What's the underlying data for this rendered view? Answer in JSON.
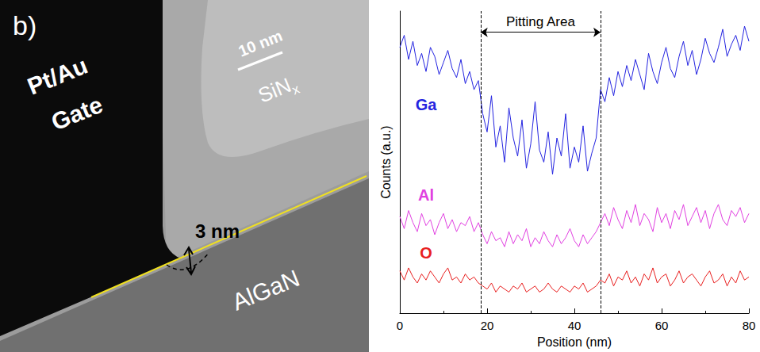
{
  "micrograph": {
    "panel_label": "b)",
    "gate_label": "Pt/Au Gate",
    "dielectric_label": "SiNx",
    "barrier_label": "AlGaN",
    "scale_bar": "10 nm",
    "measurement": "3 nm"
  },
  "chart_data": {
    "type": "line",
    "xlabel": "Position (nm)",
    "ylabel": "Counts (a.u.)",
    "x": [
      0,
      1,
      2,
      3,
      4,
      5,
      6,
      7,
      8,
      9,
      10,
      11,
      12,
      13,
      14,
      15,
      16,
      17,
      18,
      19,
      20,
      21,
      22,
      23,
      24,
      25,
      26,
      27,
      28,
      29,
      30,
      31,
      32,
      33,
      34,
      35,
      36,
      37,
      38,
      39,
      40,
      41,
      42,
      43,
      44,
      45,
      46,
      47,
      48,
      49,
      50,
      51,
      52,
      53,
      54,
      55,
      56,
      57,
      58,
      59,
      60,
      61,
      62,
      63,
      64,
      65,
      66,
      67,
      68,
      69,
      70,
      71,
      72,
      73,
      74,
      75,
      76,
      77,
      78,
      79,
      80
    ],
    "series": [
      {
        "name": "Ga",
        "color": "#2424e0",
        "values": [
          88,
          92,
          84,
          90,
          82,
          86,
          80,
          88,
          85,
          79,
          83,
          87,
          81,
          78,
          84,
          76,
          80,
          74,
          77,
          66,
          60,
          72,
          55,
          62,
          50,
          68,
          58,
          52,
          64,
          48,
          56,
          70,
          54,
          50,
          60,
          46,
          58,
          52,
          66,
          48,
          55,
          50,
          62,
          47,
          53,
          58,
          74,
          70,
          78,
          72,
          80,
          75,
          82,
          77,
          84,
          79,
          74,
          86,
          80,
          76,
          83,
          88,
          81,
          78,
          85,
          90,
          82,
          87,
          79,
          84,
          91,
          86,
          83,
          88,
          94,
          85,
          89,
          92,
          87,
          95,
          90
        ]
      },
      {
        "name": "Al",
        "color": "#e040e0",
        "values": [
          32,
          28,
          34,
          30,
          27,
          33,
          29,
          31,
          26,
          30,
          33,
          28,
          31,
          27,
          30,
          29,
          32,
          27,
          30,
          26,
          23,
          27,
          24,
          25,
          22,
          27,
          23,
          26,
          24,
          28,
          22,
          25,
          23,
          27,
          24,
          22,
          26,
          23,
          25,
          28,
          24,
          22,
          26,
          23,
          25,
          27,
          30,
          33,
          29,
          35,
          31,
          28,
          34,
          30,
          36,
          29,
          33,
          31,
          27,
          35,
          30,
          33,
          28,
          34,
          31,
          36,
          29,
          32,
          35,
          30,
          34,
          28,
          33,
          36,
          31,
          29,
          34,
          32,
          35,
          30,
          33
        ]
      },
      {
        "name": "O",
        "color": "#e82020",
        "values": [
          14,
          11,
          15,
          12,
          10,
          13,
          11,
          14,
          12,
          10,
          13,
          15,
          11,
          12,
          10,
          13,
          11,
          12,
          10,
          9,
          8,
          10,
          7,
          9,
          8,
          7,
          9,
          8,
          10,
          7,
          8,
          9,
          7,
          8,
          10,
          8,
          7,
          9,
          8,
          7,
          9,
          8,
          10,
          7,
          8,
          9,
          11,
          10,
          13,
          9,
          12,
          11,
          14,
          10,
          12,
          9,
          13,
          11,
          15,
          10,
          12,
          13,
          9,
          11,
          14,
          10,
          12,
          13,
          11,
          9,
          12,
          14,
          10,
          11,
          13,
          9,
          12,
          10,
          14,
          11,
          12
        ]
      }
    ],
    "xlim": [
      0,
      80
    ],
    "xticks": [
      0,
      20,
      40,
      60,
      80
    ],
    "ylim": [
      0,
      100
    ],
    "tick_labels": "x",
    "grid": false,
    "annotation": {
      "text": "Pitting Area",
      "x": [
        18.5,
        46
      ]
    }
  }
}
